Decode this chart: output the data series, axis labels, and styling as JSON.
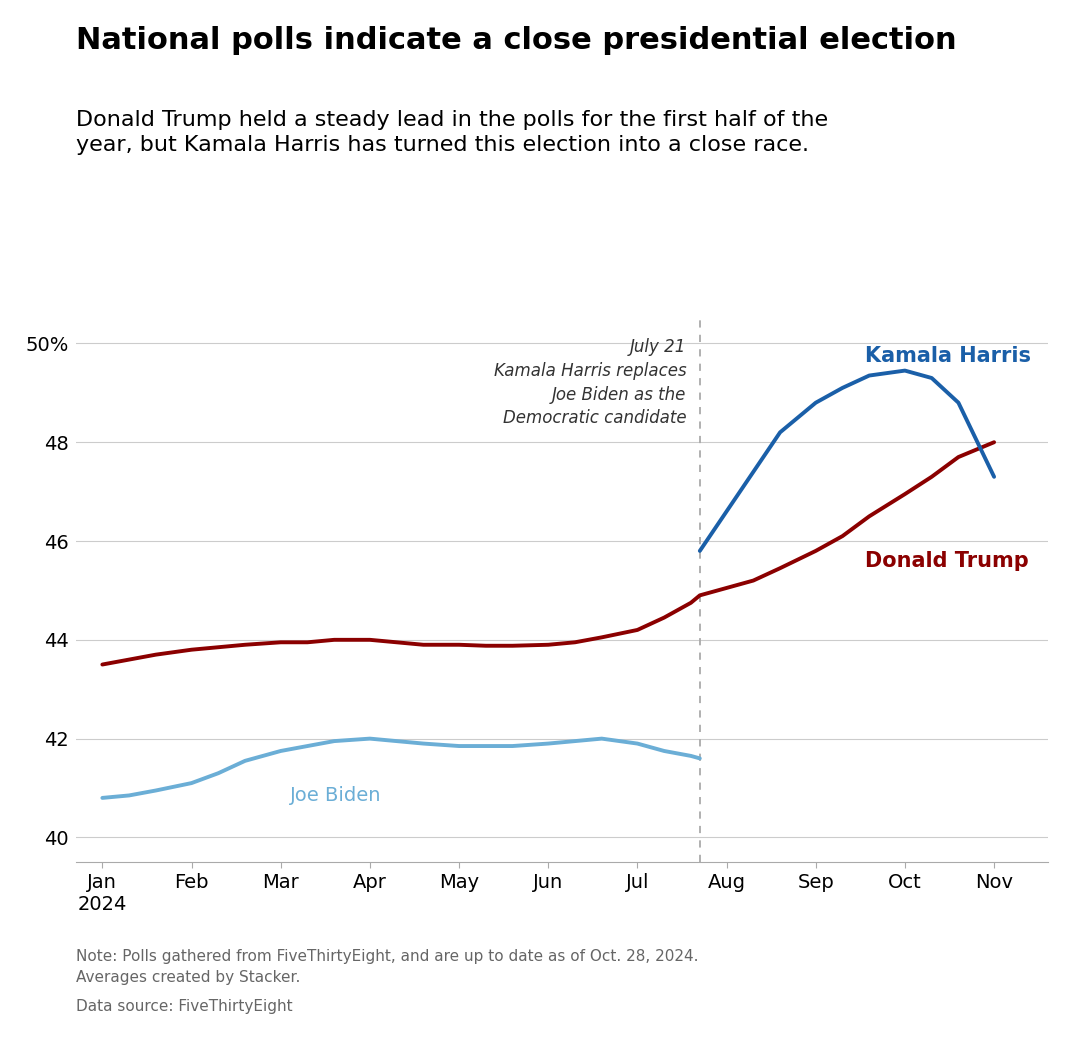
{
  "title": "National polls indicate a close presidential election",
  "subtitle": "Donald Trump held a steady lead in the polls for the first half of the\nyear, but Kamala Harris has turned this election into a close race.",
  "footer_line1": "Note: Polls gathered from FiveThirtyEight, and are up to date as of Oct. 28, 2024.",
  "footer_line2": "Averages created by Stacker.",
  "footer_line3": "Data source: FiveThirtyEight",
  "ylim": [
    39.5,
    50.5
  ],
  "yticks": [
    40,
    42,
    44,
    46,
    48,
    50
  ],
  "ytick_labels": [
    "40",
    "42",
    "44",
    "46",
    "48",
    "50%"
  ],
  "annotation_text": "July 21\nKamala Harris replaces\nJoe Biden as the\nDemocratic candidate",
  "vline_x": 6.7,
  "biden_color": "#6baed6",
  "harris_color": "#1a5fa8",
  "trump_color": "#8b0000",
  "biden_label": "Joe Biden",
  "harris_label": "Kamala Harris",
  "trump_label": "Donald Trump",
  "biden_x": [
    0,
    0.3,
    0.6,
    1.0,
    1.3,
    1.6,
    2.0,
    2.3,
    2.6,
    3.0,
    3.3,
    3.6,
    4.0,
    4.3,
    4.6,
    5.0,
    5.3,
    5.6,
    6.0,
    6.3,
    6.6,
    6.7
  ],
  "biden_y": [
    40.8,
    40.85,
    40.95,
    41.1,
    41.3,
    41.55,
    41.75,
    41.85,
    41.95,
    42.0,
    41.95,
    41.9,
    41.85,
    41.85,
    41.85,
    41.9,
    41.95,
    42.0,
    41.9,
    41.75,
    41.65,
    41.6
  ],
  "trump_x": [
    0,
    0.3,
    0.6,
    1.0,
    1.3,
    1.6,
    2.0,
    2.3,
    2.6,
    3.0,
    3.3,
    3.6,
    4.0,
    4.3,
    4.6,
    5.0,
    5.3,
    5.6,
    6.0,
    6.3,
    6.6,
    6.7,
    7.0,
    7.3,
    7.6,
    8.0,
    8.3,
    8.6,
    9.0,
    9.3,
    9.6,
    10.0
  ],
  "trump_y": [
    43.5,
    43.6,
    43.7,
    43.8,
    43.85,
    43.9,
    43.95,
    43.95,
    44.0,
    44.0,
    43.95,
    43.9,
    43.9,
    43.88,
    43.88,
    43.9,
    43.95,
    44.05,
    44.2,
    44.45,
    44.75,
    44.9,
    45.05,
    45.2,
    45.45,
    45.8,
    46.1,
    46.5,
    46.95,
    47.3,
    47.7,
    48.0
  ],
  "harris_x": [
    6.7,
    7.0,
    7.3,
    7.6,
    8.0,
    8.3,
    8.6,
    9.0,
    9.3,
    9.6,
    10.0
  ],
  "harris_y": [
    45.8,
    46.6,
    47.4,
    48.2,
    48.8,
    49.1,
    49.35,
    49.45,
    49.3,
    48.8,
    47.3
  ],
  "month_positions": [
    0,
    1,
    2,
    3,
    4,
    5,
    6,
    7,
    8,
    9,
    10
  ],
  "month_labels": [
    "Jan\n2024",
    "Feb",
    "Mar",
    "Apr",
    "May",
    "Jun",
    "Jul",
    "Aug",
    "Sep",
    "Oct",
    "Nov"
  ]
}
